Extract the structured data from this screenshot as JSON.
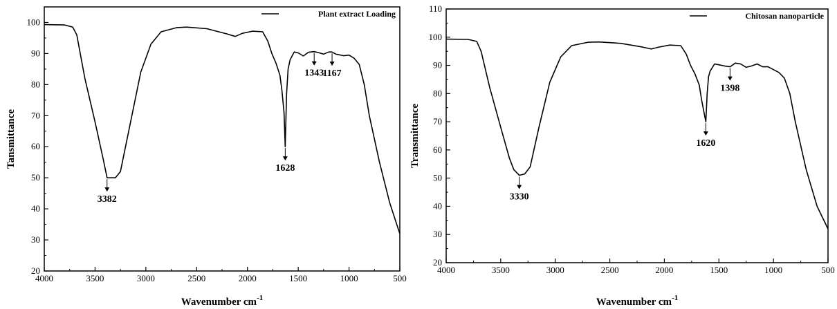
{
  "chart_data": [
    {
      "type": "line",
      "title": "",
      "xlabel": "Wavenumber cm",
      "xlabel_sup": "-1",
      "ylabel": "Tansmittance",
      "xlim": [
        4000,
        500
      ],
      "ylim": [
        20,
        105
      ],
      "xticks": [
        4000,
        3500,
        3000,
        2500,
        2000,
        1500,
        1000,
        500
      ],
      "xtick_labels": [
        "4000",
        "3500",
        "3000",
        "2500",
        "2000",
        "1500",
        "1000",
        "500"
      ],
      "yticks": [
        20,
        30,
        40,
        50,
        60,
        70,
        80,
        90,
        100
      ],
      "ytick_labels": [
        "20",
        "30",
        "40",
        "50",
        "60",
        "70",
        "80",
        "90",
        "100"
      ],
      "grid": false,
      "legend_position": "top-right",
      "series": [
        {
          "name": "Plant extract Loading",
          "x": [
            4000,
            3800,
            3720,
            3680,
            3600,
            3500,
            3420,
            3382,
            3300,
            3250,
            3150,
            3050,
            2950,
            2850,
            2700,
            2600,
            2400,
            2200,
            2120,
            2050,
            1950,
            1850,
            1800,
            1760,
            1720,
            1680,
            1660,
            1640,
            1628,
            1615,
            1600,
            1580,
            1540,
            1500,
            1450,
            1400,
            1343,
            1300,
            1250,
            1200,
            1167,
            1130,
            1100,
            1050,
            1000,
            950,
            900,
            850,
            800,
            700,
            600,
            500
          ],
          "y": [
            99.3,
            99.2,
            98.5,
            96,
            82,
            68,
            56,
            50,
            50,
            52,
            68,
            84,
            93,
            97,
            98.3,
            98.5,
            98,
            96.3,
            95.5,
            96.5,
            97.2,
            97,
            94,
            90,
            87,
            83,
            78,
            71,
            60,
            77,
            85,
            88,
            90.5,
            90.2,
            89.2,
            90.4,
            90.6,
            90.3,
            89.8,
            90.5,
            90.5,
            89.8,
            89.6,
            89.3,
            89.5,
            88.5,
            86.5,
            80,
            70,
            55,
            42,
            32
          ]
        }
      ],
      "annotations": [
        {
          "label": "3382",
          "x": 3382,
          "y": 50
        },
        {
          "label": "1628",
          "x": 1628,
          "y": 60
        },
        {
          "label": "1343",
          "x": 1343,
          "y": 90.6
        },
        {
          "label": "1167",
          "x": 1167,
          "y": 90.5
        }
      ]
    },
    {
      "type": "line",
      "title": "",
      "xlabel": "Wavenumber cm",
      "xlabel_sup": "-1",
      "ylabel": "Transmittance",
      "xlim": [
        4000,
        500
      ],
      "ylim": [
        20,
        110
      ],
      "xticks": [
        4000,
        3500,
        3000,
        2500,
        2000,
        1500,
        1000,
        500
      ],
      "xtick_labels": [
        "4000",
        "3500",
        "3000",
        "2500",
        "2000",
        "1500",
        "1000",
        "500"
      ],
      "yticks": [
        20,
        30,
        40,
        50,
        60,
        70,
        80,
        90,
        100,
        110
      ],
      "ytick_labels": [
        "20",
        "30",
        "40",
        "50",
        "60",
        "70",
        "80",
        "90",
        "100",
        "110"
      ],
      "grid": false,
      "legend_position": "top-right",
      "series": [
        {
          "name": "Chitosan nanoparticle",
          "x": [
            4000,
            3800,
            3720,
            3680,
            3600,
            3500,
            3420,
            3380,
            3330,
            3280,
            3230,
            3150,
            3050,
            2950,
            2850,
            2700,
            2600,
            2400,
            2200,
            2120,
            2050,
            1950,
            1850,
            1800,
            1760,
            1720,
            1680,
            1660,
            1640,
            1620,
            1608,
            1595,
            1580,
            1540,
            1500,
            1450,
            1398,
            1350,
            1300,
            1250,
            1200,
            1150,
            1100,
            1050,
            1000,
            950,
            900,
            850,
            800,
            700,
            600,
            500
          ],
          "y": [
            99.3,
            99.2,
            98.5,
            95,
            82,
            68,
            57,
            53,
            51,
            51.5,
            54,
            68,
            84,
            93,
            97,
            98.2,
            98.3,
            97.8,
            96.5,
            95.8,
            96.5,
            97.2,
            97,
            94,
            90,
            87,
            83,
            78,
            74,
            70,
            80,
            86,
            88,
            90.5,
            90.2,
            89.8,
            89.5,
            90.8,
            90.5,
            89.3,
            89.8,
            90.5,
            89.5,
            89.5,
            88.5,
            87.5,
            85.5,
            80,
            70,
            53,
            40,
            32
          ]
        }
      ],
      "annotations": [
        {
          "label": "3330",
          "x": 3330,
          "y": 51
        },
        {
          "label": "1620",
          "x": 1620,
          "y": 70
        },
        {
          "label": "1398",
          "x": 1398,
          "y": 89.5
        }
      ]
    }
  ]
}
